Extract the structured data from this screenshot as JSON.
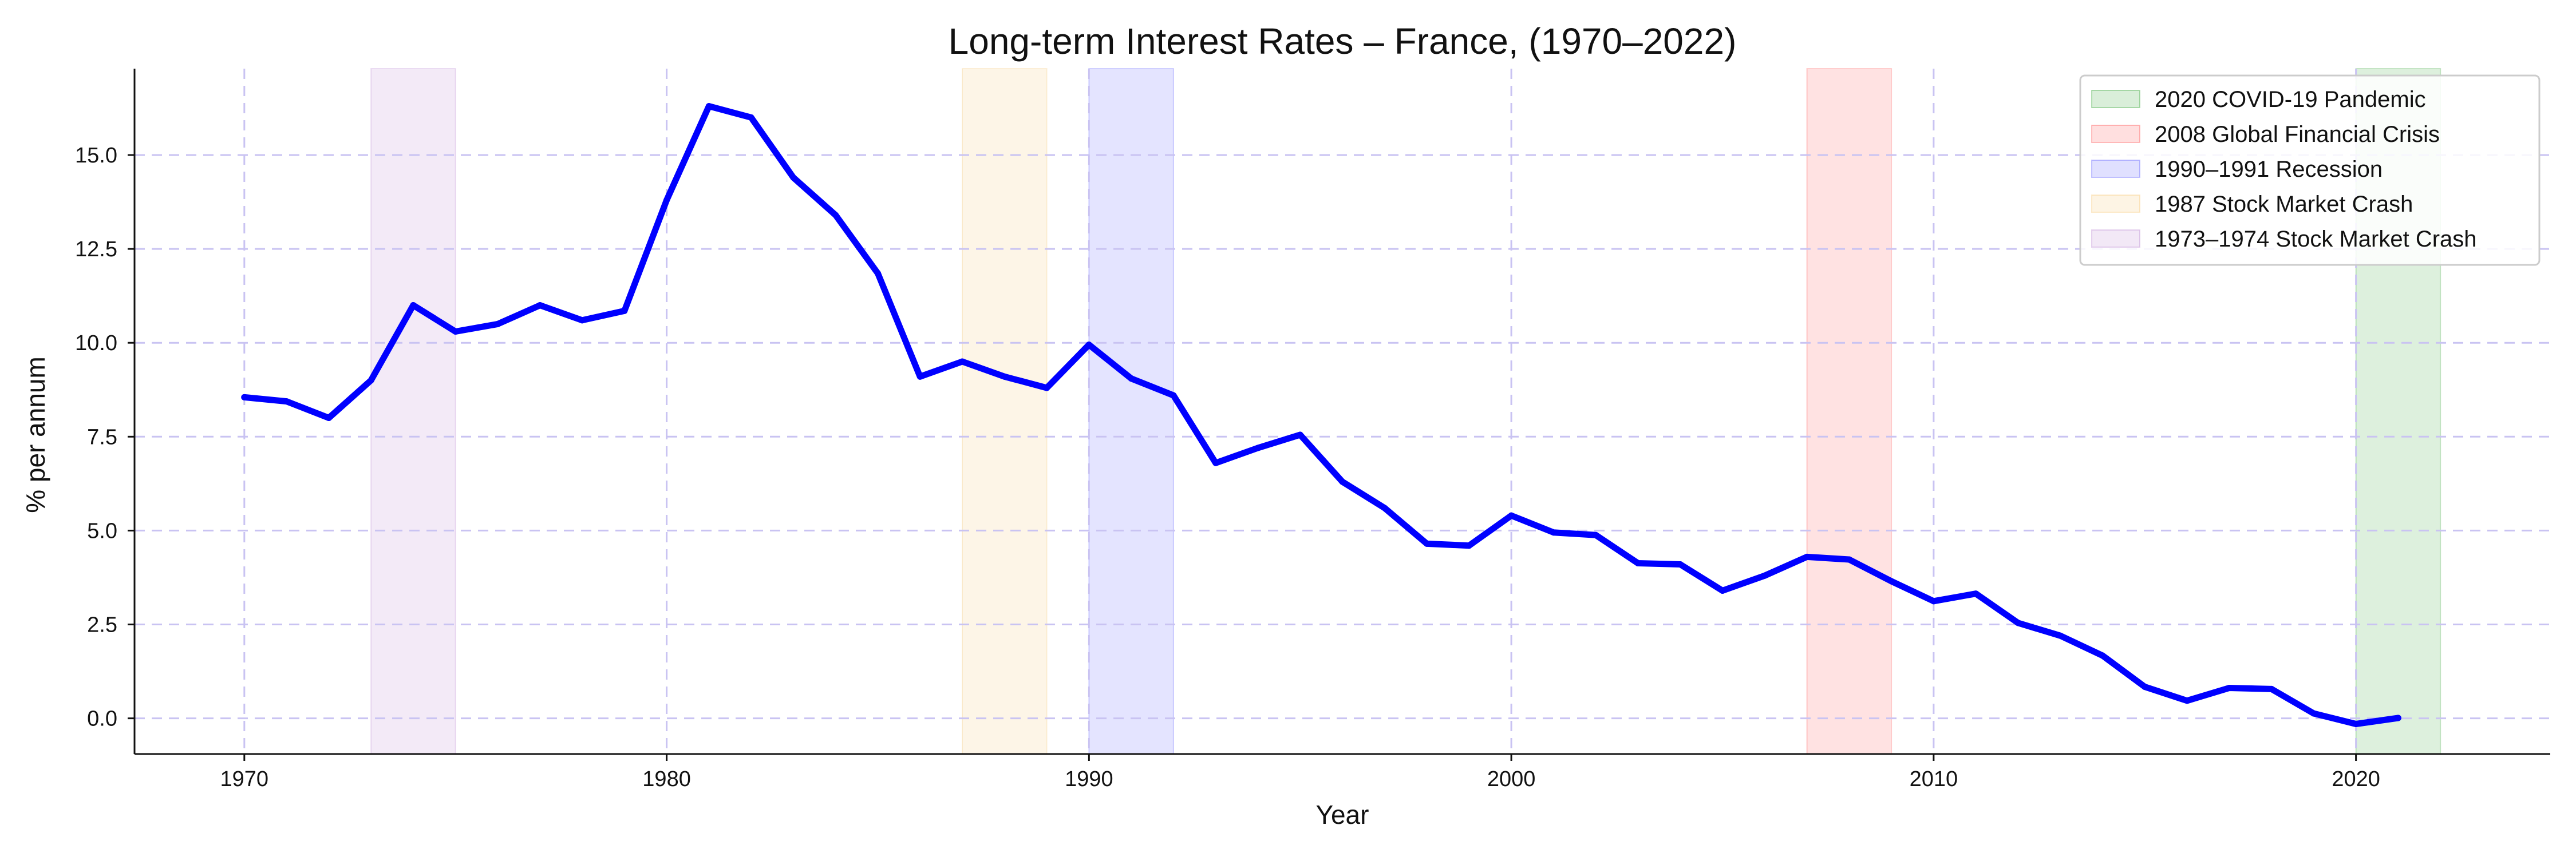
{
  "chart_data": {
    "type": "line",
    "title": "Long-term Interest Rates – France, (1970–2022)",
    "xlabel": "Year",
    "ylabel": "% per annum",
    "xlim": [
      1967.4,
      2024.6
    ],
    "ylim": [
      -0.95,
      17.3
    ],
    "x_ticks": [
      1970,
      1980,
      1990,
      2000,
      2010,
      2020
    ],
    "y_ticks": [
      0.0,
      2.5,
      5.0,
      7.5,
      10.0,
      12.5,
      15.0
    ],
    "x_tick_labels": [
      "1970",
      "1980",
      "1990",
      "2000",
      "2010",
      "2020"
    ],
    "y_tick_labels": [
      "0.0",
      "2.5",
      "5.0",
      "7.5",
      "10.0",
      "12.5",
      "15.0"
    ],
    "grid": true,
    "legend_position": "top-right",
    "line_color": "#0000ff",
    "series": [
      {
        "x": [
          1970,
          1971,
          1972,
          1973,
          1974,
          1975,
          1976,
          1977,
          1978,
          1979,
          1980,
          1981,
          1982,
          1983,
          1984,
          1985,
          1986,
          1987,
          1988,
          1989,
          1990,
          1991,
          1992,
          1993,
          1994,
          1995,
          1996,
          1997,
          1998,
          1999,
          2000,
          2001,
          2002,
          2003,
          2004,
          2005,
          2006,
          2007,
          2008,
          2009,
          2010,
          2011,
          2012,
          2013,
          2014,
          2015,
          2016,
          2017,
          2018,
          2019,
          2020,
          2021
        ],
        "values": [
          8.55,
          8.44,
          8.0,
          9.0,
          11.0,
          10.3,
          10.5,
          11.0,
          10.6,
          10.85,
          13.8,
          16.3,
          16.0,
          14.4,
          13.4,
          11.85,
          9.1,
          9.5,
          9.1,
          8.8,
          9.95,
          9.05,
          8.6,
          6.8,
          7.2,
          7.55,
          6.3,
          5.6,
          4.65,
          4.6,
          5.4,
          4.95,
          4.88,
          4.13,
          4.1,
          3.4,
          3.8,
          4.3,
          4.23,
          3.65,
          3.12,
          3.32,
          2.54,
          2.2,
          1.67,
          0.84,
          0.47,
          0.81,
          0.78,
          0.13,
          -0.15,
          0.01
        ]
      }
    ],
    "shaded_regions": [
      {
        "label": "2020 COVID-19 Pandemic",
        "start": 2020,
        "end": 2022,
        "color": "#2ca02c"
      },
      {
        "label": "2008 Global Financial Crisis",
        "start": 2007,
        "end": 2009,
        "color": "#ff4d4d"
      },
      {
        "label": "1990–1991 Recession",
        "start": 1990,
        "end": 1992,
        "color": "#5555ff"
      },
      {
        "label": "1987 Stock Market Crash",
        "start": 1987,
        "end": 1989,
        "color": "#f5c26b"
      },
      {
        "label": "1973–1974 Stock Market Crash",
        "start": 1973,
        "end": 1975,
        "color": "#b57fcf"
      }
    ]
  }
}
